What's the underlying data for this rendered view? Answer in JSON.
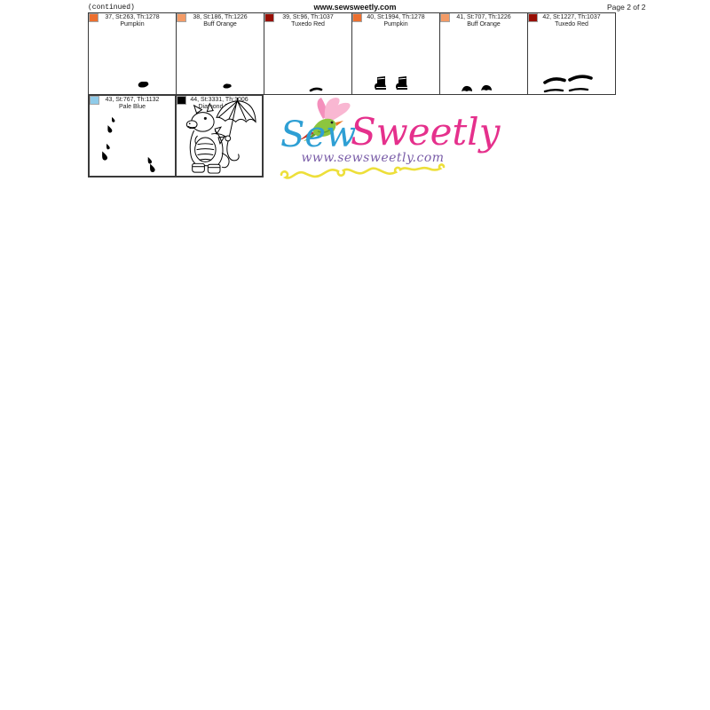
{
  "page": {
    "continued_label": "(continued)",
    "site_header": "www.sewsweetly.com",
    "page_number": "Page 2 of 2"
  },
  "thread_colors": {
    "pumpkin": "#EC6F2F",
    "buff_orange": "#F39B66",
    "tuxedo_red": "#970F05",
    "pale_blue": "#8FCBE9",
    "diamond_black": "#000000"
  },
  "cells": [
    {
      "info": "37, St:263, Th:1278",
      "name": "Pumpkin",
      "swatch": "#EC6F2F",
      "art": "sole-blob"
    },
    {
      "info": "38, St:186, Th:1226",
      "name": "Buff Orange",
      "swatch": "#F39B66",
      "art": "small-blob"
    },
    {
      "info": "39, St:96, Th:1037",
      "name": "Tuxedo Red",
      "swatch": "#970F05",
      "art": "dash"
    },
    {
      "info": "40, St:1994, Th:1278",
      "name": "Pumpkin",
      "swatch": "#EC6F2F",
      "art": "boots"
    },
    {
      "info": "41, St:707, Th:1226",
      "name": "Buff Orange",
      "swatch": "#F39B66",
      "art": "boot-tops"
    },
    {
      "info": "42, St:1227, Th:1037",
      "name": "Tuxedo Red",
      "swatch": "#970F05",
      "art": "boot-trims"
    },
    {
      "info": "43, St:767, Th:1132",
      "name": "Pale Blue",
      "swatch": "#8FCBE9",
      "art": "raindrops"
    },
    {
      "info": "44, St:3331, Th:1006",
      "name": "Diamond Black",
      "swatch": "#000000",
      "art": "dragon-outline"
    }
  ],
  "logo": {
    "word1": "Sew",
    "word2": "Sweetly",
    "url": "www.sewsweetly.com",
    "brand_blue": "#2E9FD4",
    "brand_pink": "#E5308C",
    "url_purple": "#7A5DA8",
    "squiggle_yellow": "#EDDF3A",
    "bird_green": "#8CC63E",
    "bird_pink": "#F9B7D2",
    "bird_accent_red": "#CC3322"
  }
}
